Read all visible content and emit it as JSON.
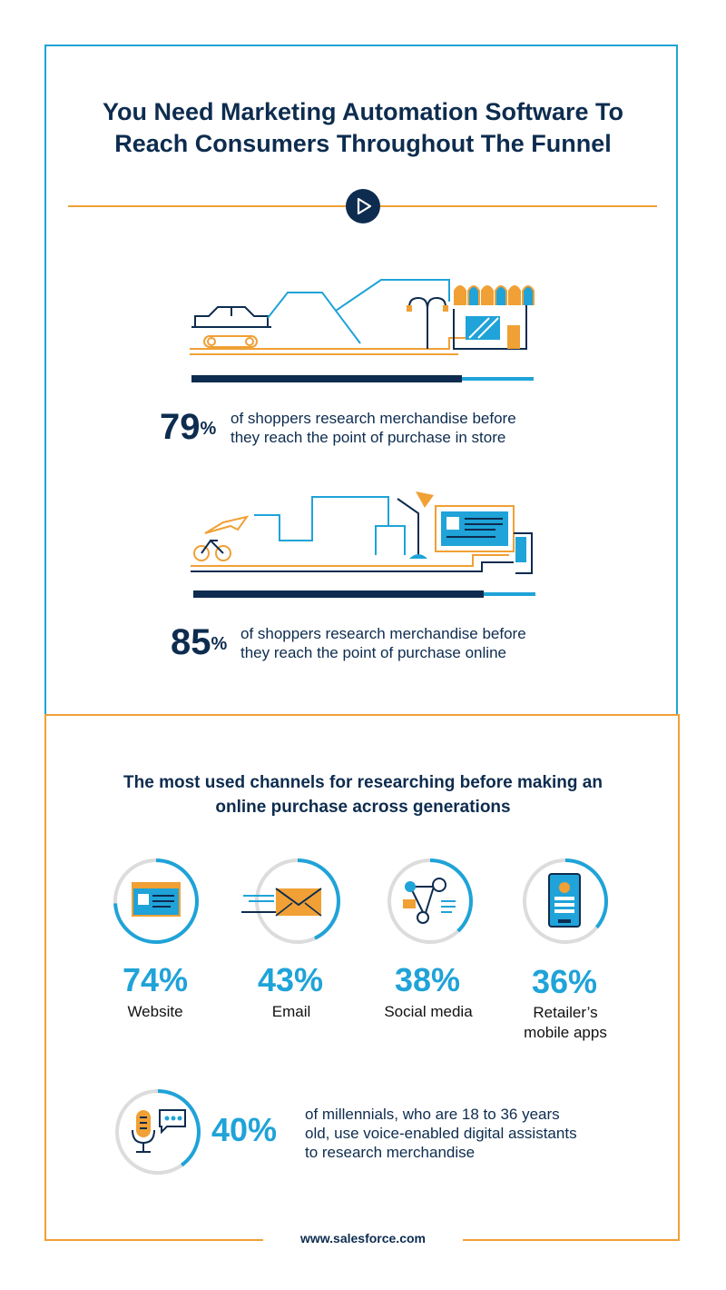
{
  "header": {
    "title_line1": "You Need Marketing Automation Software To",
    "title_line2": "Reach Consumers Throughout The Funnel"
  },
  "icons": {
    "play": "play-icon",
    "store_scene": "store-street-illustration",
    "online_scene": "online-shopping-illustration",
    "website": "browser-window-icon",
    "email": "envelope-icon",
    "social": "social-network-icon",
    "mobile": "mobile-phone-icon",
    "voice": "voice-assistant-microphone-icon"
  },
  "stats": [
    {
      "value": "79",
      "unit": "%",
      "text_line1": "of shoppers research merchandise before",
      "text_line2": "they reach the point of purchase in store",
      "bar_fraction": 0.79
    },
    {
      "value": "85",
      "unit": "%",
      "text_line1": "of shoppers research merchandise before",
      "text_line2": "they reach the point of purchase online",
      "bar_fraction": 0.85
    }
  ],
  "channels_section": {
    "title_line1": "The most used channels for researching before making an",
    "title_line2": "online purchase across generations"
  },
  "channels": [
    {
      "pct": "74%",
      "label_line1": "Website",
      "label_line2": "",
      "fraction": 0.74
    },
    {
      "pct": "43%",
      "label_line1": "Email",
      "label_line2": "",
      "fraction": 0.43
    },
    {
      "pct": "38%",
      "label_line1": "Social media",
      "label_line2": "",
      "fraction": 0.38
    },
    {
      "pct": "36%",
      "label_line1": "Retailer’s",
      "label_line2": "mobile apps",
      "fraction": 0.36
    }
  ],
  "millennials": {
    "pct": "40%",
    "text_line1": "of millennials, who are 18 to 36 years",
    "text_line2": "old, use voice-enabled digital assistants",
    "text_line3": "to research merchandise",
    "fraction": 0.4
  },
  "footer": {
    "url": "www.salesforce.com"
  },
  "colors": {
    "navy": "#0d2c4f",
    "blue": "#1fa3d8",
    "orange": "#f0a035",
    "ring_gray": "#dcdcdc"
  }
}
